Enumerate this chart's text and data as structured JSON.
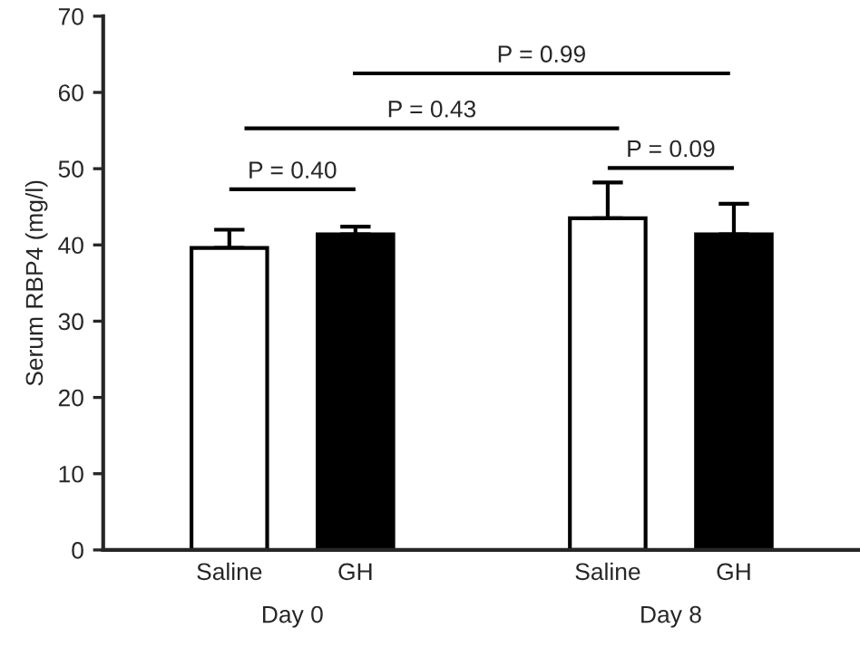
{
  "chart_data": {
    "type": "bar",
    "ylabel": "Serum RBP4 (mg/l)",
    "categories": [
      "Saline",
      "GH",
      null,
      "Saline",
      "GH"
    ],
    "values": [
      39.6,
      41.4,
      null,
      43.5,
      41.4
    ],
    "colors": [
      "#ffffff",
      "#000000",
      null,
      "#ffffff",
      "#000000"
    ],
    "errors": [
      [
        39.6,
        42.0
      ],
      [
        41.4,
        42.4
      ],
      null,
      [
        43.5,
        48.2
      ],
      [
        41.4,
        45.4
      ]
    ],
    "ylim": [
      0,
      70
    ],
    "yticks": [
      0,
      10,
      20,
      30,
      40,
      50,
      60,
      70
    ],
    "grid": false,
    "annotations": [
      "P = 0.40",
      "P = 0.43",
      "P = 0.99",
      "P = 0.09",
      "Day 0",
      "Day 8"
    ]
  }
}
